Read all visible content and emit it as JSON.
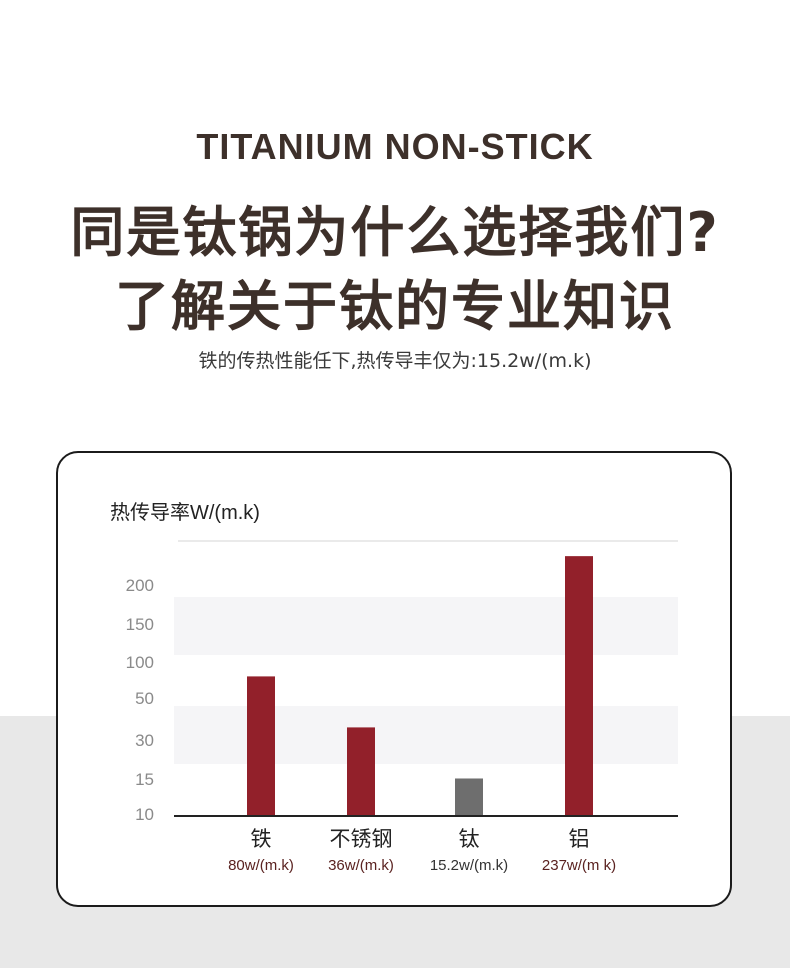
{
  "header": {
    "eyebrow": "TITANIUM NON-STICK",
    "headline_line1": "同是钛锅为什么选择我们?",
    "headline_line2": "了解关于钛的专业知识",
    "subline": "铁的传热性能任下,热传导丰仅为:15.2w/(m.k)"
  },
  "colors": {
    "heading": "#3d302a",
    "bar_primary": "#92202a",
    "bar_highlight": "#6e6e6e",
    "band": "#f5f5f7",
    "bottom_bg": "#e8e8e8"
  },
  "chart_data": {
    "type": "bar",
    "ylabel": "热传导率W/(m.k)",
    "y_ticks": [
      "10",
      "15",
      "30",
      "50",
      "100",
      "150",
      "200"
    ],
    "categories": [
      "铁",
      "不锈钢",
      "钛",
      "铝"
    ],
    "values": [
      80,
      36,
      15.2,
      237
    ],
    "value_labels": [
      "80w/(m.k)",
      "36w/(m.k)",
      "15.2w/(m.k)",
      "237w/(m k)"
    ],
    "highlight_index": 2,
    "grid": false
  }
}
